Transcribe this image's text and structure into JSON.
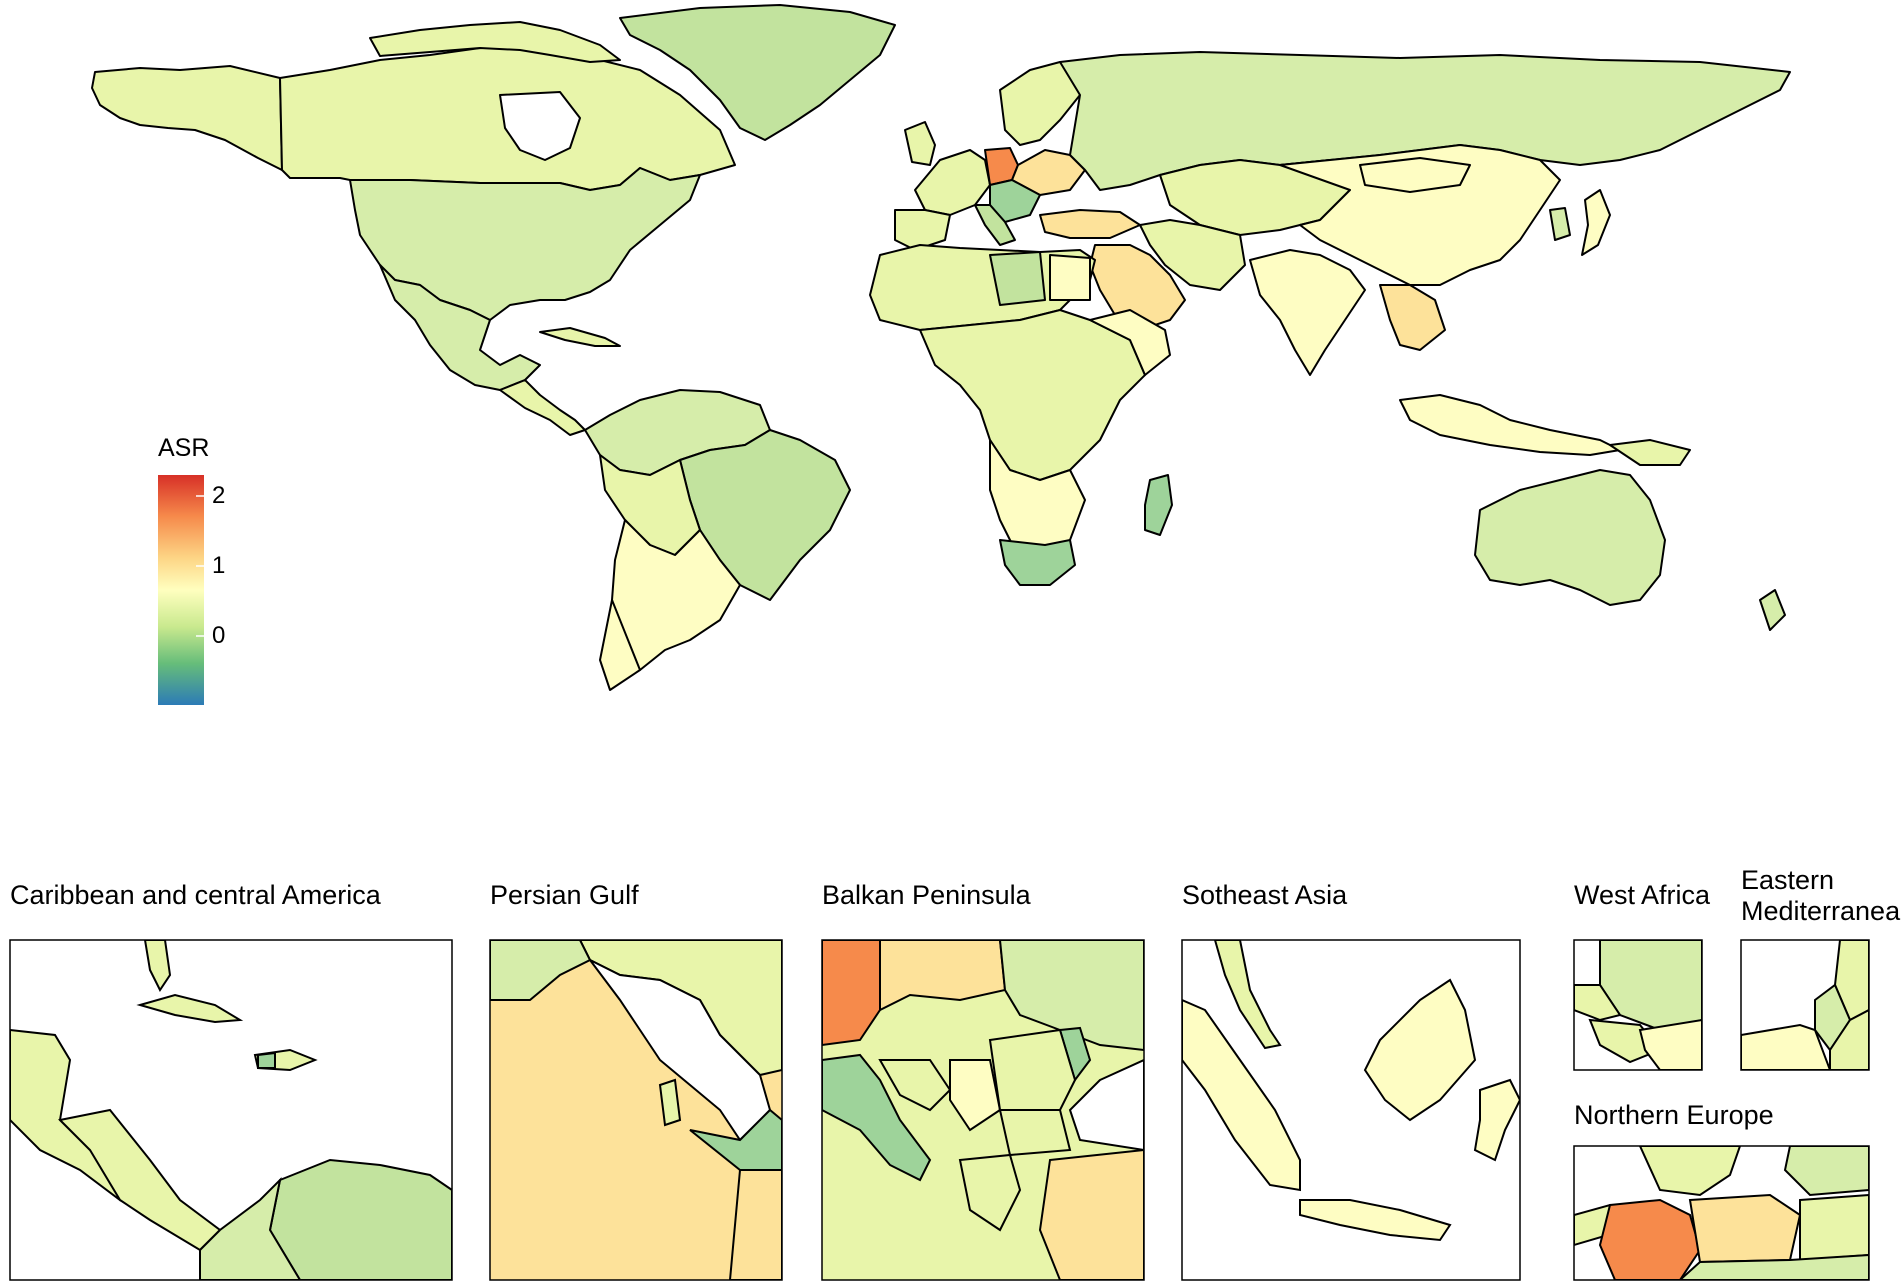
{
  "legend": {
    "title": "ASR",
    "ticks": [
      "2",
      "1",
      "0"
    ],
    "tick_values": [
      2,
      1,
      0
    ],
    "range": [
      -1,
      2.3
    ],
    "colors": [
      "#d73027",
      "#f46d43",
      "#fdae61",
      "#fee08b",
      "#ffffbf",
      "#d9ef8b",
      "#a6d96a",
      "#66bd63",
      "#1a9850",
      "#2c7bb6"
    ]
  },
  "insets": {
    "caribbean": "Caribbean and central America",
    "persian_gulf": "Persian Gulf",
    "balkan": "Balkan Peninsula",
    "southeast_asia": "Sotheast Asia",
    "west_africa": "West Africa",
    "eastern_med_line1": "Eastern",
    "eastern_med_line2": "Mediterranea",
    "northern_europe": "Northern Europe"
  },
  "colors": {
    "outline": "#000000",
    "highest": "#f7a060",
    "high": "#fde29a",
    "mid": "#fefdc3",
    "low": "#e8f5aa",
    "lower": "#d6edaa",
    "lowest": "#9ed39a"
  }
}
